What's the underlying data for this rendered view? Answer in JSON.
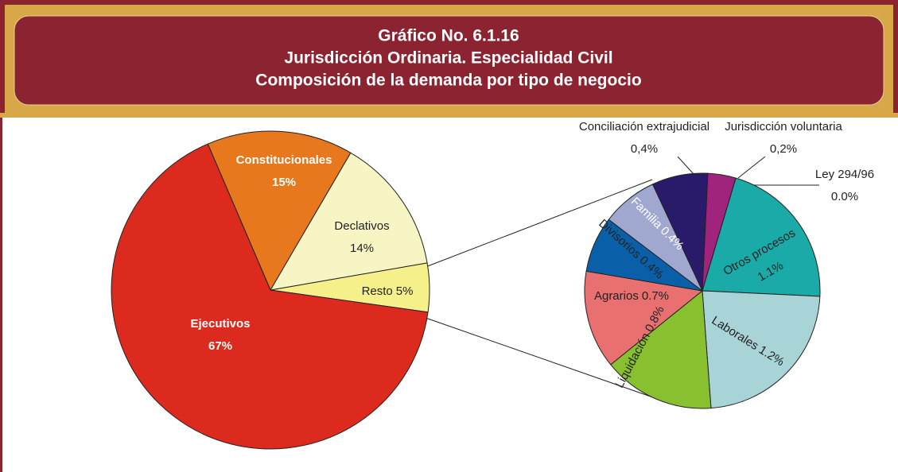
{
  "header": {
    "lines": [
      "Gráfico No. 6.1.16",
      "Jurisdicción Ordinaria. Especialidad Civil",
      "Composición de la demanda por tipo de negocio"
    ]
  },
  "chart_data": [
    {
      "type": "pie",
      "categories": [
        "Resto",
        "Declativos",
        "Constitucionales",
        "Ejecutivos"
      ],
      "values": [
        5,
        14,
        15,
        67
      ],
      "value_labels": [
        "5%",
        "14%",
        "15%",
        "67%"
      ],
      "colors": [
        "#f5f08a",
        "#f8f5c4",
        "#e8781e",
        "#dc2a1e"
      ]
    },
    {
      "type": "pie",
      "categories": [
        "Conciliación extrajudicial",
        "Jurisdicción voluntaria",
        "Ley 294/96",
        "Otros procesos",
        "Laborales",
        "Liquidación",
        "Agrarios",
        "Divisorios",
        "Familia"
      ],
      "values": [
        0.4,
        0.2,
        0.0,
        1.1,
        1.2,
        0.8,
        0.7,
        0.4,
        0.4
      ],
      "value_labels": [
        "0,4%",
        "0,2%",
        "0.0%",
        "1.1%",
        "1.2%",
        "0.8%",
        "0.7%",
        "0.4%",
        "0.4%"
      ],
      "colors": [
        "#2a1a6a",
        "#a0237e",
        "#f0e020",
        "#1aaba8",
        "#a8d4d8",
        "#88c030",
        "#e87070",
        "#0a60a8",
        "#a0a8d0"
      ]
    }
  ]
}
